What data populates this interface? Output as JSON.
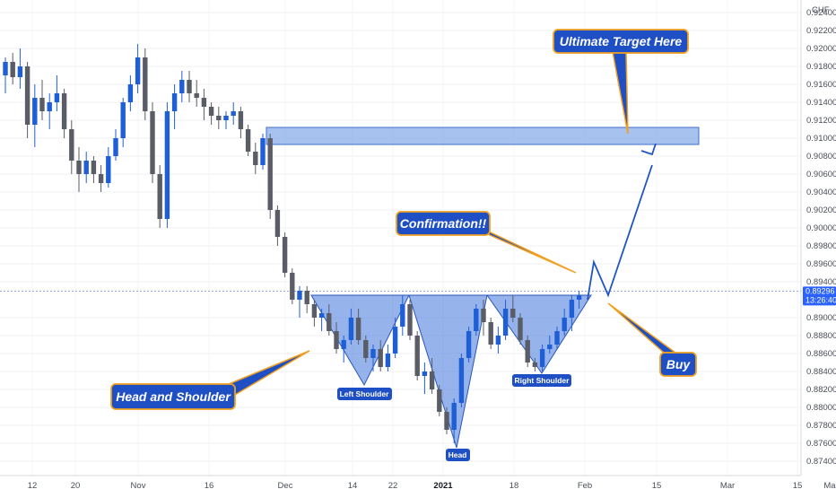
{
  "chart_data": {
    "type": "candlestick",
    "currency_label": "CHF",
    "ylim": [
      0.873,
      0.925
    ],
    "y_ticks": [
      "0.92400",
      "0.92200",
      "0.92000",
      "0.91800",
      "0.91600",
      "0.91400",
      "0.91200",
      "0.91000",
      "0.90800",
      "0.90600",
      "0.90400",
      "0.90200",
      "0.90000",
      "0.89800",
      "0.89600",
      "0.89400",
      "0.89000",
      "0.88800",
      "0.88600",
      "0.88400",
      "0.88200",
      "0.88000",
      "0.87800",
      "0.87600",
      "0.87400"
    ],
    "x_ticks": [
      "12",
      "20",
      "Nov",
      "16",
      "Dec",
      "14",
      "22",
      "2021",
      "18",
      "Feb",
      "15",
      "Mar",
      "15",
      "Ma"
    ],
    "current_price": "0.89296",
    "countdown": "13:26:40",
    "annotations": {
      "head_and_shoulder": "Head and Shoulder",
      "left_shoulder": "Left Shoulder",
      "head": "Head",
      "right_shoulder": "Right Shoulder",
      "confirmation": "Confirmation!!",
      "ultimate_target": "Ultimate Target Here",
      "buy": "Buy"
    },
    "target_zone": [
      0.9093,
      0.9112
    ],
    "candles": [
      [
        0.917,
        0.919,
        0.915,
        0.9185
      ],
      [
        0.9185,
        0.9195,
        0.916,
        0.9168
      ],
      [
        0.9168,
        0.92,
        0.9155,
        0.918
      ],
      [
        0.918,
        0.9185,
        0.91,
        0.9115
      ],
      [
        0.9115,
        0.916,
        0.909,
        0.9145
      ],
      [
        0.9145,
        0.9165,
        0.912,
        0.913
      ],
      [
        0.913,
        0.915,
        0.911,
        0.914
      ],
      [
        0.914,
        0.917,
        0.913,
        0.915
      ],
      [
        0.915,
        0.9155,
        0.91,
        0.911
      ],
      [
        0.911,
        0.912,
        0.906,
        0.9075
      ],
      [
        0.9075,
        0.909,
        0.904,
        0.906
      ],
      [
        0.906,
        0.9085,
        0.905,
        0.9075
      ],
      [
        0.9075,
        0.908,
        0.905,
        0.906
      ],
      [
        0.906,
        0.907,
        0.904,
        0.905
      ],
      [
        0.905,
        0.909,
        0.9045,
        0.908
      ],
      [
        0.908,
        0.911,
        0.9075,
        0.91
      ],
      [
        0.91,
        0.9145,
        0.909,
        0.914
      ],
      [
        0.914,
        0.917,
        0.913,
        0.916
      ],
      [
        0.916,
        0.9205,
        0.915,
        0.919
      ],
      [
        0.919,
        0.92,
        0.912,
        0.913
      ],
      [
        0.913,
        0.914,
        0.905,
        0.906
      ],
      [
        0.906,
        0.907,
        0.9,
        0.901
      ],
      [
        0.901,
        0.914,
        0.9,
        0.913
      ],
      [
        0.913,
        0.916,
        0.911,
        0.915
      ],
      [
        0.915,
        0.9175,
        0.914,
        0.9165
      ],
      [
        0.9165,
        0.9175,
        0.914,
        0.915
      ],
      [
        0.915,
        0.9165,
        0.9135,
        0.9145
      ],
      [
        0.9145,
        0.9155,
        0.912,
        0.9135
      ],
      [
        0.9135,
        0.914,
        0.9115,
        0.9125
      ],
      [
        0.9125,
        0.9135,
        0.911,
        0.912
      ],
      [
        0.912,
        0.913,
        0.911,
        0.9125
      ],
      [
        0.9125,
        0.914,
        0.9115,
        0.913
      ],
      [
        0.913,
        0.9135,
        0.91,
        0.911
      ],
      [
        0.911,
        0.9115,
        0.908,
        0.9085
      ],
      [
        0.9085,
        0.9095,
        0.906,
        0.907
      ],
      [
        0.907,
        0.9105,
        0.9065,
        0.91
      ],
      [
        0.91,
        0.9105,
        0.901,
        0.902
      ],
      [
        0.902,
        0.9025,
        0.898,
        0.899
      ],
      [
        0.899,
        0.8995,
        0.8945,
        0.895
      ],
      [
        0.895,
        0.8955,
        0.8915,
        0.892
      ],
      [
        0.892,
        0.8935,
        0.89,
        0.893
      ],
      [
        0.893,
        0.8935,
        0.8905,
        0.8915
      ],
      [
        0.8915,
        0.892,
        0.889,
        0.89
      ],
      [
        0.89,
        0.891,
        0.8885,
        0.8905
      ],
      [
        0.8905,
        0.8915,
        0.888,
        0.8885
      ],
      [
        0.8885,
        0.8895,
        0.886,
        0.8865
      ],
      [
        0.8865,
        0.888,
        0.885,
        0.8875
      ],
      [
        0.8875,
        0.891,
        0.887,
        0.89
      ],
      [
        0.89,
        0.891,
        0.887,
        0.8875
      ],
      [
        0.8875,
        0.888,
        0.885,
        0.8855
      ],
      [
        0.8855,
        0.887,
        0.884,
        0.8865
      ],
      [
        0.8865,
        0.8875,
        0.884,
        0.8845
      ],
      [
        0.8845,
        0.887,
        0.884,
        0.886
      ],
      [
        0.886,
        0.89,
        0.8855,
        0.889
      ],
      [
        0.889,
        0.8925,
        0.888,
        0.8915
      ],
      [
        0.8915,
        0.892,
        0.8875,
        0.888
      ],
      [
        0.888,
        0.8885,
        0.883,
        0.8835
      ],
      [
        0.8835,
        0.885,
        0.8815,
        0.884
      ],
      [
        0.884,
        0.8855,
        0.8815,
        0.882
      ],
      [
        0.882,
        0.8825,
        0.879,
        0.8795
      ],
      [
        0.8795,
        0.88,
        0.877,
        0.8775
      ],
      [
        0.8775,
        0.881,
        0.876,
        0.8805
      ],
      [
        0.8805,
        0.886,
        0.88,
        0.8855
      ],
      [
        0.8855,
        0.889,
        0.885,
        0.8885
      ],
      [
        0.8885,
        0.8915,
        0.888,
        0.891
      ],
      [
        0.891,
        0.892,
        0.888,
        0.8895
      ],
      [
        0.8895,
        0.89,
        0.8865,
        0.887
      ],
      [
        0.887,
        0.889,
        0.886,
        0.888
      ],
      [
        0.888,
        0.892,
        0.8875,
        0.891
      ],
      [
        0.891,
        0.8925,
        0.8895,
        0.89
      ],
      [
        0.89,
        0.8905,
        0.887,
        0.8875
      ],
      [
        0.8875,
        0.888,
        0.8845,
        0.885
      ],
      [
        0.885,
        0.8855,
        0.884,
        0.8845
      ],
      [
        0.8845,
        0.887,
        0.884,
        0.8865
      ],
      [
        0.8865,
        0.888,
        0.886,
        0.887
      ],
      [
        0.887,
        0.889,
        0.8865,
        0.8885
      ],
      [
        0.8885,
        0.891,
        0.888,
        0.89
      ],
      [
        0.89,
        0.8925,
        0.8885,
        0.892
      ],
      [
        0.892,
        0.893,
        0.891,
        0.8925
      ]
    ]
  }
}
